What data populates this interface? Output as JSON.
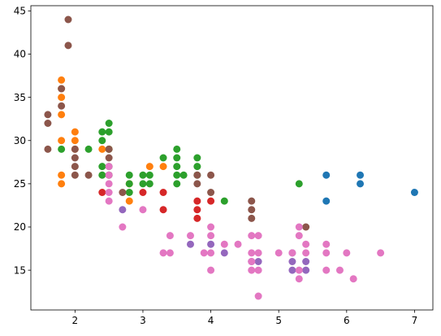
{
  "chart_data": {
    "type": "scatter",
    "title": "",
    "xlabel": "",
    "ylabel": "",
    "xlim": [
      1.35,
      7.27
    ],
    "ylim": [
      10.4,
      45.6
    ],
    "xticks": [
      2,
      3,
      4,
      5,
      6,
      7
    ],
    "yticks": [
      15,
      20,
      25,
      30,
      35,
      40,
      45
    ],
    "grid": false,
    "legend": "none",
    "series": [
      {
        "color": "#1f77b4",
        "points": [
          [
            5.7,
            26
          ],
          [
            5.7,
            23
          ],
          [
            6.2,
            26
          ],
          [
            6.2,
            25
          ],
          [
            7.0,
            24
          ]
        ]
      },
      {
        "color": "#ff7f0e",
        "points": [
          [
            1.8,
            37
          ],
          [
            1.8,
            36
          ],
          [
            1.8,
            35
          ],
          [
            1.8,
            33
          ],
          [
            1.8,
            30
          ],
          [
            1.8,
            26
          ],
          [
            1.8,
            25
          ],
          [
            2.0,
            31
          ],
          [
            2.0,
            30
          ],
          [
            2.0,
            29
          ],
          [
            2.4,
            29
          ],
          [
            2.5,
            29
          ],
          [
            2.8,
            25
          ],
          [
            2.8,
            23
          ],
          [
            3.1,
            27
          ],
          [
            3.3,
            27
          ]
        ]
      },
      {
        "color": "#2ca02c",
        "points": [
          [
            1.8,
            29
          ],
          [
            2.2,
            29
          ],
          [
            2.4,
            31
          ],
          [
            2.4,
            30
          ],
          [
            2.4,
            27
          ],
          [
            2.4,
            26
          ],
          [
            2.5,
            32
          ],
          [
            2.5,
            31
          ],
          [
            2.5,
            29
          ],
          [
            2.5,
            27
          ],
          [
            2.5,
            26
          ],
          [
            2.8,
            26
          ],
          [
            2.8,
            25
          ],
          [
            2.8,
            24
          ],
          [
            3.0,
            26
          ],
          [
            3.0,
            25
          ],
          [
            3.1,
            26
          ],
          [
            3.1,
            25
          ],
          [
            3.3,
            28
          ],
          [
            3.5,
            29
          ],
          [
            3.5,
            28
          ],
          [
            3.5,
            27
          ],
          [
            3.5,
            26
          ],
          [
            3.5,
            25
          ],
          [
            3.6,
            26
          ],
          [
            3.8,
            28
          ],
          [
            3.8,
            27
          ],
          [
            3.8,
            26
          ],
          [
            4.2,
            23
          ],
          [
            5.3,
            25
          ]
        ]
      },
      {
        "color": "#d62728",
        "points": [
          [
            2.4,
            24
          ],
          [
            3.0,
            24
          ],
          [
            3.3,
            24
          ],
          [
            3.3,
            22
          ],
          [
            3.8,
            23
          ],
          [
            3.8,
            22
          ],
          [
            3.8,
            21
          ],
          [
            4.0,
            23
          ]
        ]
      },
      {
        "color": "#9467bd",
        "points": [
          [
            2.7,
            22
          ],
          [
            3.7,
            18
          ],
          [
            4.0,
            18
          ],
          [
            4.2,
            17
          ],
          [
            4.6,
            16
          ],
          [
            4.7,
            16
          ],
          [
            5.2,
            17
          ],
          [
            5.2,
            16
          ],
          [
            5.2,
            15
          ],
          [
            5.4,
            15
          ],
          [
            5.4,
            16
          ]
        ]
      },
      {
        "color": "#8c564b",
        "points": [
          [
            1.6,
            33
          ],
          [
            1.6,
            32
          ],
          [
            1.6,
            29
          ],
          [
            1.8,
            36
          ],
          [
            1.8,
            34
          ],
          [
            1.9,
            44
          ],
          [
            1.9,
            41
          ],
          [
            2.0,
            29
          ],
          [
            2.0,
            28
          ],
          [
            2.0,
            27
          ],
          [
            2.0,
            26
          ],
          [
            2.2,
            26
          ],
          [
            2.5,
            29
          ],
          [
            2.5,
            28
          ],
          [
            2.5,
            26
          ],
          [
            2.7,
            24
          ],
          [
            3.8,
            26
          ],
          [
            3.8,
            25
          ],
          [
            4.0,
            26
          ],
          [
            4.0,
            24
          ],
          [
            4.6,
            23
          ],
          [
            4.6,
            22
          ],
          [
            4.6,
            21
          ],
          [
            5.4,
            20
          ]
        ]
      },
      {
        "color": "#e377c2",
        "points": [
          [
            2.5,
            27
          ],
          [
            2.5,
            26
          ],
          [
            2.5,
            25
          ],
          [
            2.5,
            24
          ],
          [
            2.5,
            23
          ],
          [
            2.7,
            20
          ],
          [
            3.0,
            22
          ],
          [
            3.3,
            17
          ],
          [
            3.4,
            19
          ],
          [
            3.4,
            17
          ],
          [
            3.7,
            19
          ],
          [
            3.9,
            17
          ],
          [
            4.0,
            20
          ],
          [
            4.0,
            19
          ],
          [
            4.0,
            17
          ],
          [
            4.0,
            15
          ],
          [
            4.2,
            18
          ],
          [
            4.4,
            18
          ],
          [
            4.6,
            19
          ],
          [
            4.6,
            17
          ],
          [
            4.6,
            16
          ],
          [
            4.6,
            15
          ],
          [
            4.7,
            19
          ],
          [
            4.7,
            17
          ],
          [
            4.7,
            15
          ],
          [
            4.7,
            12
          ],
          [
            5.0,
            17
          ],
          [
            5.2,
            17
          ],
          [
            5.3,
            20
          ],
          [
            5.3,
            19
          ],
          [
            5.3,
            15
          ],
          [
            5.3,
            14
          ],
          [
            5.4,
            18
          ],
          [
            5.4,
            17
          ],
          [
            5.7,
            18
          ],
          [
            5.7,
            17
          ],
          [
            5.7,
            15
          ],
          [
            5.9,
            15
          ],
          [
            6.0,
            17
          ],
          [
            6.1,
            14
          ],
          [
            6.5,
            17
          ]
        ]
      }
    ]
  }
}
